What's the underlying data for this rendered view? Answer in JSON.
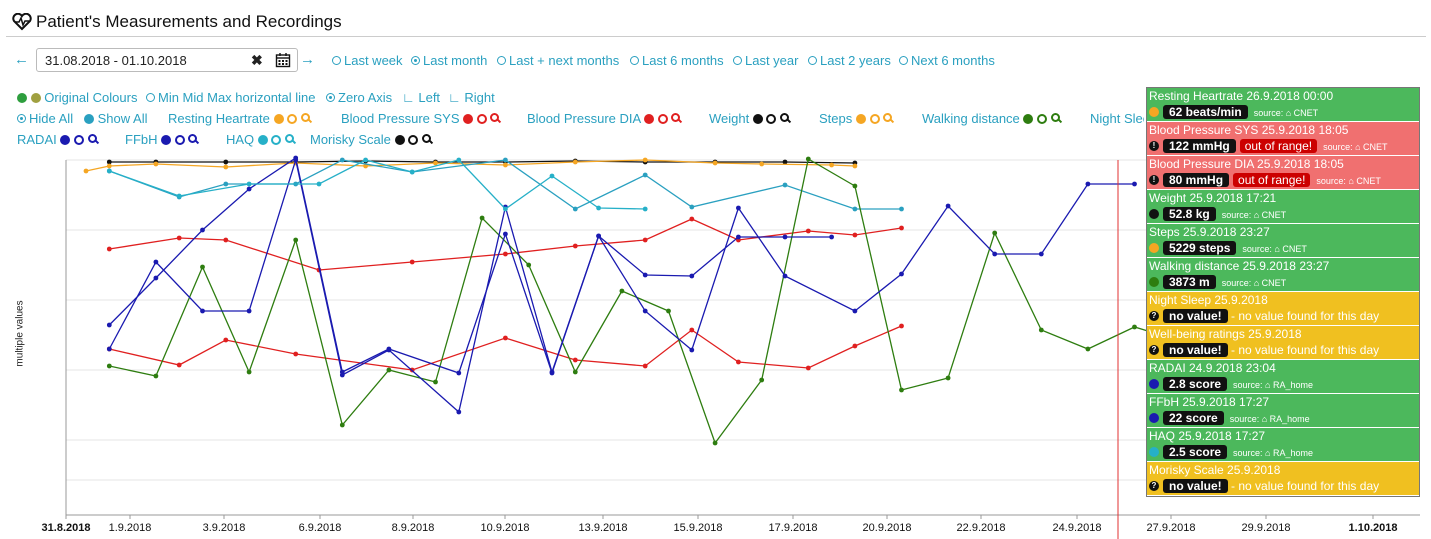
{
  "header": {
    "title": "Patient's Measurements and Recordings"
  },
  "range": {
    "value": "31.08.2018 - 01.10.2018",
    "presets": [
      {
        "label": "Last week",
        "selected": false
      },
      {
        "label": "Last month",
        "selected": true
      },
      {
        "label": "Last + next months",
        "selected": false
      },
      {
        "label": "Last 6 months",
        "selected": false
      },
      {
        "label": "Last year",
        "selected": false
      },
      {
        "label": "Last 2 years",
        "selected": false
      },
      {
        "label": "Next 6 months",
        "selected": false
      }
    ]
  },
  "options": {
    "original_colours": "Original Colours",
    "minmidmax": "Min Mid Max horizontal line",
    "zero_axis": "Zero Axis",
    "left": "Left",
    "right": "Right",
    "hide_all": "Hide All",
    "show_all": "Show All"
  },
  "legend": [
    {
      "label": "Resting Heartrate",
      "color": "#f5a623"
    },
    {
      "label": "Blood Pressure SYS",
      "color": "#e02020"
    },
    {
      "label": "Blood Pressure DIA",
      "color": "#e02020"
    },
    {
      "label": "Weight",
      "color": "#111111"
    },
    {
      "label": "Steps",
      "color": "#f5a623"
    },
    {
      "label": "Walking distance",
      "color": "#2e7d10"
    },
    {
      "label": "Night Sleep",
      "color": "#2aa0c0"
    },
    {
      "label": "RADAI",
      "color": "#1a1ab0"
    },
    {
      "label": "FFbH",
      "color": "#1a1ab0"
    },
    {
      "label": "HAQ",
      "color": "#26b0c8"
    },
    {
      "label": "Morisky Scale",
      "color": "#111111"
    }
  ],
  "colors": {
    "accent": "#2aa0c0",
    "green": "#4cb85c",
    "red": "#f07070",
    "yellow": "#f0c020",
    "cursor": "#e03030"
  },
  "chart_data": {
    "type": "line",
    "ylabel": "multiple values",
    "x_ticks": [
      "31.8.2018",
      "1.9.2018",
      "3.9.2018",
      "6.9.2018",
      "8.9.2018",
      "10.9.2018",
      "13.9.2018",
      "15.9.2018",
      "17.9.2018",
      "20.9.2018",
      "22.9.2018",
      "24.9.2018",
      "27.9.2018",
      "29.9.2018",
      "1.10.2018"
    ],
    "x_range": [
      "2018-08-31",
      "2018-10-01"
    ],
    "cursor_date": "2018-09-25",
    "series": [
      {
        "name": "Weight",
        "color": "#111111",
        "points": [
          [
            1,
            162
          ],
          [
            3,
            162
          ],
          [
            6,
            162
          ],
          [
            9,
            162
          ],
          [
            12,
            161
          ],
          [
            15,
            162
          ],
          [
            18,
            162
          ],
          [
            21,
            161
          ],
          [
            24,
            162
          ],
          [
            27,
            162
          ],
          [
            30,
            162
          ],
          [
            33,
            163
          ]
        ]
      },
      {
        "name": "Resting Heartrate",
        "color": "#f5a623",
        "points": [
          [
            0,
            171
          ],
          [
            1,
            166
          ],
          [
            3,
            164
          ],
          [
            6,
            167
          ],
          [
            9,
            163
          ],
          [
            12,
            166
          ],
          [
            15,
            163
          ],
          [
            18,
            165
          ],
          [
            21,
            162
          ],
          [
            24,
            160
          ],
          [
            27,
            163
          ],
          [
            29,
            164
          ],
          [
            32,
            165
          ],
          [
            33,
            166
          ]
        ]
      },
      {
        "name": "Night Sleep",
        "color": "#2aa0c0",
        "points": [
          [
            1,
            171
          ],
          [
            4,
            197
          ],
          [
            6,
            184
          ],
          [
            9,
            184
          ],
          [
            11,
            160
          ],
          [
            14,
            172
          ],
          [
            18,
            160
          ],
          [
            21,
            209
          ],
          [
            24,
            175
          ],
          [
            26,
            207
          ],
          [
            30,
            185
          ],
          [
            33,
            209
          ],
          [
            35,
            209
          ]
        ]
      },
      {
        "name": "Blood Pressure SYS",
        "color": "#e02020",
        "points": [
          [
            1,
            249
          ],
          [
            4,
            238
          ],
          [
            6,
            240
          ],
          [
            10,
            270
          ],
          [
            14,
            262
          ],
          [
            18,
            254
          ],
          [
            21,
            246
          ],
          [
            24,
            240
          ],
          [
            26,
            219
          ],
          [
            28,
            240
          ],
          [
            31,
            231
          ],
          [
            33,
            235
          ],
          [
            35,
            228
          ]
        ]
      },
      {
        "name": "Blood Pressure DIA",
        "color": "#e02020",
        "points": [
          [
            1,
            349
          ],
          [
            4,
            365
          ],
          [
            6,
            340
          ],
          [
            9,
            354
          ],
          [
            14,
            370
          ],
          [
            18,
            338
          ],
          [
            21,
            360
          ],
          [
            24,
            366
          ],
          [
            26,
            330
          ],
          [
            28,
            362
          ],
          [
            31,
            368
          ],
          [
            33,
            346
          ],
          [
            35,
            326
          ]
        ]
      },
      {
        "name": "Walking distance",
        "color": "#2e7d10",
        "points": [
          [
            1,
            366
          ],
          [
            3,
            376
          ],
          [
            5,
            267
          ],
          [
            7,
            372
          ],
          [
            9,
            240
          ],
          [
            11,
            425
          ],
          [
            13,
            370
          ],
          [
            15,
            382
          ],
          [
            17,
            218
          ],
          [
            19,
            265
          ],
          [
            21,
            372
          ],
          [
            23,
            291
          ],
          [
            25,
            311
          ],
          [
            27,
            443
          ],
          [
            29,
            380
          ],
          [
            31,
            159
          ],
          [
            33,
            186
          ],
          [
            35,
            390
          ],
          [
            37,
            378
          ],
          [
            39,
            233
          ],
          [
            41,
            330
          ],
          [
            43,
            349
          ],
          [
            45,
            327
          ],
          [
            47,
            341
          ],
          [
            49,
            400
          ]
        ]
      },
      {
        "name": "RADAI",
        "color": "#1a1ab0",
        "points": [
          [
            1,
            349
          ],
          [
            3,
            262
          ],
          [
            5,
            311
          ],
          [
            7,
            311
          ],
          [
            9,
            160
          ],
          [
            11,
            375
          ],
          [
            13,
            350
          ],
          [
            16,
            412
          ],
          [
            18,
            207
          ],
          [
            20,
            372
          ],
          [
            22,
            236
          ],
          [
            24,
            311
          ],
          [
            26,
            350
          ],
          [
            28,
            208
          ],
          [
            30,
            276
          ],
          [
            33,
            311
          ],
          [
            35,
            274
          ],
          [
            37,
            206
          ],
          [
            39,
            254
          ],
          [
            41,
            254
          ],
          [
            43,
            184
          ],
          [
            45,
            184
          ]
        ]
      },
      {
        "name": "FFbH",
        "color": "#1a1ab0",
        "points": [
          [
            1,
            325
          ],
          [
            3,
            278
          ],
          [
            5,
            230
          ],
          [
            7,
            189
          ],
          [
            9,
            158
          ],
          [
            11,
            372
          ],
          [
            13,
            349
          ],
          [
            16,
            373
          ],
          [
            18,
            234
          ],
          [
            20,
            373
          ],
          [
            22,
            236
          ],
          [
            24,
            275
          ],
          [
            26,
            276
          ],
          [
            28,
            237
          ],
          [
            30,
            237
          ],
          [
            32,
            237
          ]
        ]
      },
      {
        "name": "HAQ",
        "color": "#26b0c8",
        "points": [
          [
            1,
            171
          ],
          [
            4,
            196
          ],
          [
            7,
            184
          ],
          [
            10,
            184
          ],
          [
            12,
            160
          ],
          [
            14,
            172
          ],
          [
            16,
            160
          ],
          [
            18,
            209
          ],
          [
            20,
            176
          ],
          [
            22,
            208
          ],
          [
            24,
            209
          ]
        ]
      }
    ]
  },
  "tooltip": [
    {
      "title": "Resting Heartrate 26.9.2018 00:00",
      "value": "62 beats/min",
      "range": "",
      "source": "source: ⌂ CNET",
      "bg": "#4cb85c",
      "bullet": "#f5a623",
      "note": ""
    },
    {
      "title": "Blood Pressure SYS 25.9.2018 18:05",
      "value": "122 mmHg",
      "range": "out of range!",
      "source": "source: ⌂ CNET",
      "bg": "#f07070",
      "bullet": "excl",
      "note": ""
    },
    {
      "title": "Blood Pressure DIA 25.9.2018 18:05",
      "value": "80 mmHg",
      "range": "out of range!",
      "source": "source: ⌂ CNET",
      "bg": "#f07070",
      "bullet": "excl",
      "note": ""
    },
    {
      "title": "Weight 25.9.2018 17:21",
      "value": "52.8 kg",
      "range": "",
      "source": "source: ⌂ CNET",
      "bg": "#4cb85c",
      "bullet": "#111111",
      "note": ""
    },
    {
      "title": "Steps 25.9.2018 23:27",
      "value": "5229 steps",
      "range": "",
      "source": "source: ⌂ CNET",
      "bg": "#4cb85c",
      "bullet": "#f5a623",
      "note": ""
    },
    {
      "title": "Walking distance 25.9.2018 23:27",
      "value": "3873 m",
      "range": "",
      "source": "source: ⌂ CNET",
      "bg": "#4cb85c",
      "bullet": "#2e7d10",
      "note": ""
    },
    {
      "title": "Night Sleep 25.9.2018",
      "value": "no value!",
      "range": "",
      "source": "",
      "bg": "#f0c020",
      "bullet": "q",
      "note": "- no value found for this day"
    },
    {
      "title": "Well-being ratings 25.9.2018",
      "value": "no value!",
      "range": "",
      "source": "",
      "bg": "#f0c020",
      "bullet": "q",
      "note": "- no value found for this day"
    },
    {
      "title": "RADAI 24.9.2018 23:04",
      "value": "2.8 score",
      "range": "",
      "source": "source: ⌂ RA_home",
      "bg": "#4cb85c",
      "bullet": "#1a1ab0",
      "note": ""
    },
    {
      "title": "FFbH 25.9.2018 17:27",
      "value": "22 score",
      "range": "",
      "source": "source: ⌂ RA_home",
      "bg": "#4cb85c",
      "bullet": "#1a1ab0",
      "note": ""
    },
    {
      "title": "HAQ 25.9.2018 17:27",
      "value": "2.5 score",
      "range": "",
      "source": "source: ⌂ RA_home",
      "bg": "#4cb85c",
      "bullet": "#26b0c8",
      "note": ""
    },
    {
      "title": "Morisky Scale 25.9.2018",
      "value": "no value!",
      "range": "",
      "source": "",
      "bg": "#f0c020",
      "bullet": "q",
      "note": "- no value found for this day"
    }
  ]
}
